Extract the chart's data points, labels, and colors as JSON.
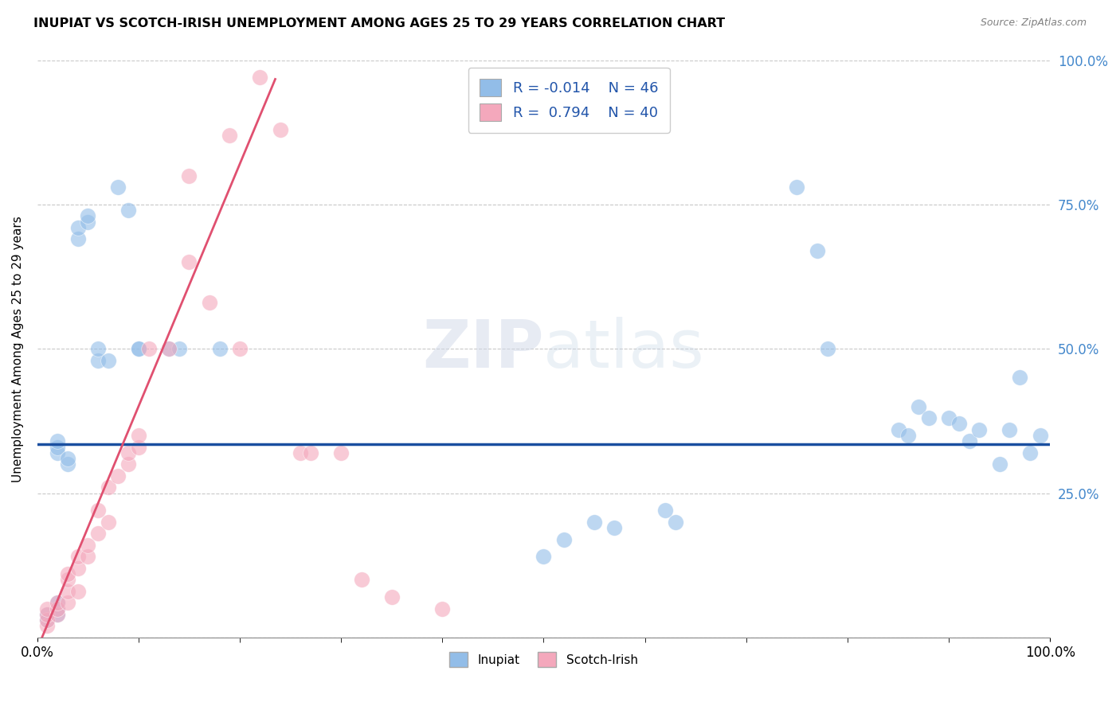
{
  "title": "INUPIAT VS SCOTCH-IRISH UNEMPLOYMENT AMONG AGES 25 TO 29 YEARS CORRELATION CHART",
  "source": "Source: ZipAtlas.com",
  "ylabel": "Unemployment Among Ages 25 to 29 years",
  "xlim": [
    0.0,
    1.0
  ],
  "ylim": [
    0.0,
    1.0
  ],
  "ytick_positions": [
    0.0,
    0.25,
    0.5,
    0.75,
    1.0
  ],
  "ytick_labels": [
    "",
    "25.0%",
    "50.0%",
    "75.0%",
    "100.0%"
  ],
  "grid_color": "#c8c8c8",
  "inupiat_color": "#92bde8",
  "scotch_color": "#f4a8bc",
  "line_inupiat_color": "#1a4fa0",
  "line_scotch_color": "#e05070",
  "inupiat_x": [
    0.01,
    0.01,
    0.02,
    0.02,
    0.02,
    0.02,
    0.02,
    0.02,
    0.03,
    0.03,
    0.04,
    0.04,
    0.05,
    0.05,
    0.06,
    0.06,
    0.07,
    0.08,
    0.09,
    0.1,
    0.1,
    0.13,
    0.14,
    0.18,
    0.5,
    0.52,
    0.55,
    0.57,
    0.62,
    0.63,
    0.75,
    0.77,
    0.78,
    0.85,
    0.86,
    0.87,
    0.88,
    0.9,
    0.91,
    0.92,
    0.93,
    0.95,
    0.96,
    0.97,
    0.98,
    0.99
  ],
  "inupiat_y": [
    0.04,
    0.03,
    0.04,
    0.05,
    0.06,
    0.32,
    0.33,
    0.34,
    0.3,
    0.31,
    0.69,
    0.71,
    0.72,
    0.73,
    0.48,
    0.5,
    0.48,
    0.78,
    0.74,
    0.5,
    0.5,
    0.5,
    0.5,
    0.5,
    0.14,
    0.17,
    0.2,
    0.19,
    0.22,
    0.2,
    0.78,
    0.67,
    0.5,
    0.36,
    0.35,
    0.4,
    0.38,
    0.38,
    0.37,
    0.34,
    0.36,
    0.3,
    0.36,
    0.45,
    0.32,
    0.35
  ],
  "scotch_x": [
    0.01,
    0.01,
    0.01,
    0.01,
    0.02,
    0.02,
    0.02,
    0.03,
    0.03,
    0.03,
    0.03,
    0.04,
    0.04,
    0.04,
    0.05,
    0.05,
    0.06,
    0.06,
    0.07,
    0.07,
    0.08,
    0.09,
    0.09,
    0.1,
    0.1,
    0.11,
    0.13,
    0.15,
    0.15,
    0.17,
    0.19,
    0.2,
    0.22,
    0.24,
    0.26,
    0.27,
    0.3,
    0.32,
    0.35,
    0.4
  ],
  "scotch_y": [
    0.02,
    0.03,
    0.04,
    0.05,
    0.04,
    0.05,
    0.06,
    0.06,
    0.08,
    0.1,
    0.11,
    0.08,
    0.12,
    0.14,
    0.14,
    0.16,
    0.18,
    0.22,
    0.2,
    0.26,
    0.28,
    0.3,
    0.32,
    0.33,
    0.35,
    0.5,
    0.5,
    0.65,
    0.8,
    0.58,
    0.87,
    0.5,
    0.97,
    0.88,
    0.32,
    0.32,
    0.32,
    0.1,
    0.07,
    0.05
  ],
  "line_inupiat_y_intercept": 0.335,
  "line_scotch_slope": 4.2,
  "line_scotch_intercept": -0.02
}
